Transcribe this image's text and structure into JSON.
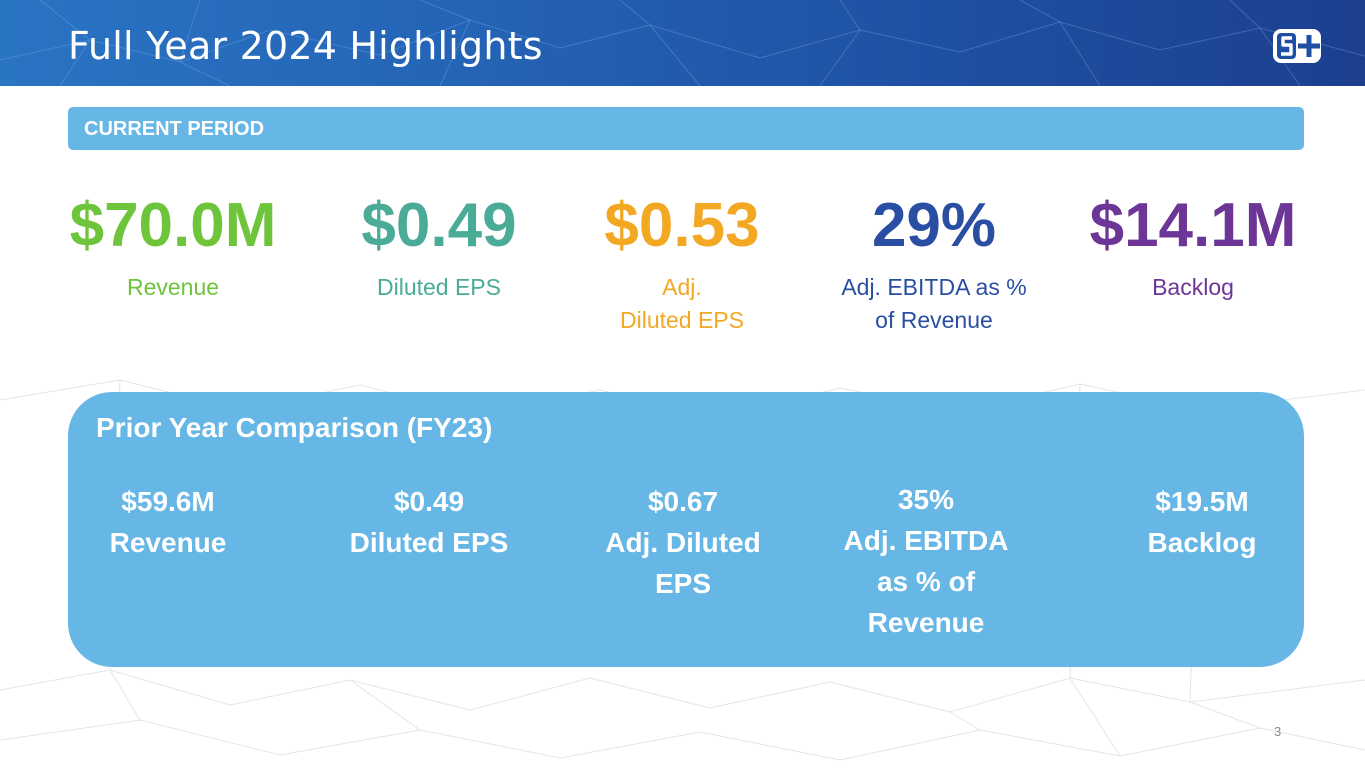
{
  "slide": {
    "title": "Full Year 2024 Highlights",
    "page_number": "3",
    "colors": {
      "header_start": "#2a74c4",
      "header_end": "#1c3f8e",
      "panel": "#66b6e6",
      "revenue": "#6ec43a",
      "diluted_eps": "#4aab96",
      "adj_diluted_eps": "#f2a823",
      "adj_ebitda": "#2a4ea2",
      "backlog": "#6c3596"
    }
  },
  "current_period": {
    "label": "CURRENT PERIOD",
    "metrics": [
      {
        "value": "$70.0M",
        "label_line1": "Revenue",
        "label_line2": ""
      },
      {
        "value": "$0.49",
        "label_line1": "Diluted EPS",
        "label_line2": ""
      },
      {
        "value": "$0.53",
        "label_line1": "Adj.",
        "label_line2": "Diluted EPS"
      },
      {
        "value": "29%",
        "label_line1": "Adj. EBITDA as %",
        "label_line2": "of Revenue"
      },
      {
        "value": "$14.1M",
        "label_line1": "Backlog",
        "label_line2": ""
      }
    ]
  },
  "prior_year": {
    "title": "Prior Year Comparison (FY23)",
    "items": [
      {
        "lines": [
          "$59.6M",
          "Revenue"
        ]
      },
      {
        "lines": [
          "$0.49",
          "Diluted EPS"
        ]
      },
      {
        "lines": [
          "$0.67",
          "Adj. Diluted",
          "EPS"
        ]
      },
      {
        "lines": [
          "35%",
          "Adj. EBITDA",
          "as % of",
          "Revenue"
        ]
      },
      {
        "lines": [
          "$19.5M",
          "Backlog"
        ]
      }
    ]
  }
}
